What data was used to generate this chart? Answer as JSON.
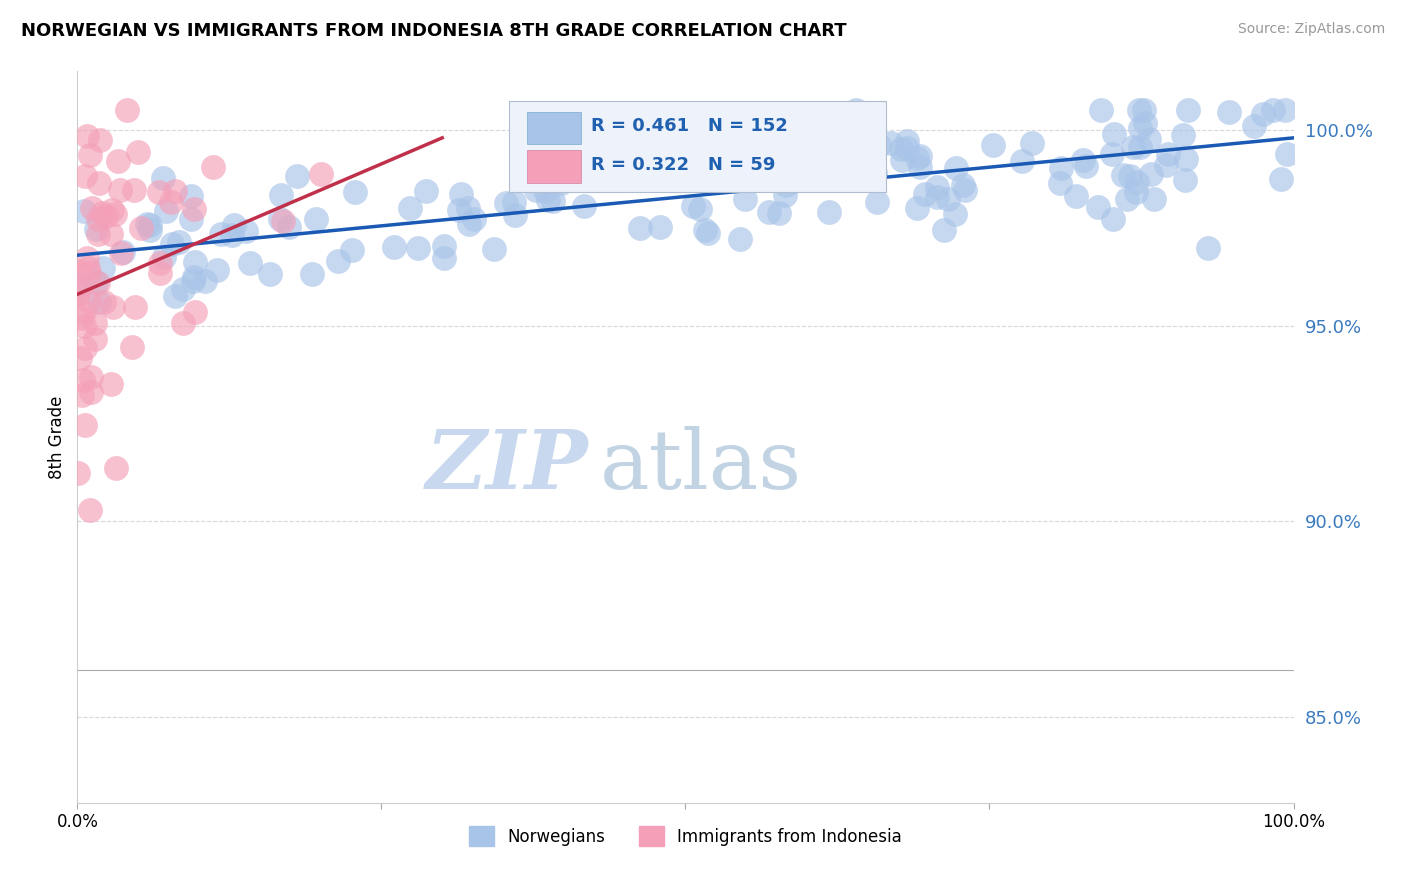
{
  "title": "NORWEGIAN VS IMMIGRANTS FROM INDONESIA 8TH GRADE CORRELATION CHART",
  "source": "Source: ZipAtlas.com",
  "ylabel": "8th Grade",
  "ytick_labels": [
    "85.0%",
    "90.0%",
    "95.0%",
    "100.0%"
  ],
  "ytick_values": [
    0.85,
    0.9,
    0.95,
    1.0
  ],
  "xlim": [
    0.0,
    1.0
  ],
  "ylim": [
    0.828,
    1.015
  ],
  "norwegian_color": "#a8c4e8",
  "indonesia_color": "#f4a0b8",
  "norwegian_line_color": "#1a5ab5",
  "indonesia_line_color": "#c0304a",
  "R_norwegian": 0.461,
  "N_norwegian": 152,
  "R_indonesia": 0.322,
  "N_indonesia": 59,
  "watermark_zip": "ZIP",
  "watermark_atlas": "atlas",
  "watermark_color": "#c8d8ee",
  "grid_color": "#d8d8d8",
  "nor_trend_x0": 0.0,
  "nor_trend_y0": 0.968,
  "nor_trend_x1": 1.0,
  "nor_trend_y1": 0.998,
  "ind_trend_x0": 0.0,
  "ind_trend_y0": 0.958,
  "ind_trend_x1": 0.3,
  "ind_trend_y1": 0.998
}
